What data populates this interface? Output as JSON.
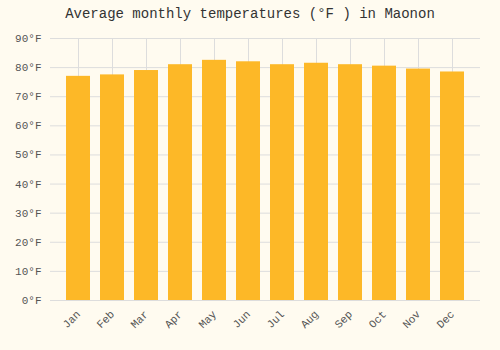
{
  "chart_data": {
    "type": "bar",
    "title": "Average monthly temperatures (°F ) in Maonon",
    "categories": [
      "Jan",
      "Feb",
      "Mar",
      "Apr",
      "May",
      "Jun",
      "Jul",
      "Aug",
      "Sep",
      "Oct",
      "Nov",
      "Dec"
    ],
    "values": [
      77.0,
      77.5,
      79.0,
      81.0,
      82.5,
      82.0,
      81.0,
      81.5,
      81.0,
      80.5,
      79.5,
      78.5
    ],
    "color": "#FDB827",
    "ylim": [
      0,
      90
    ],
    "yticks": [
      {
        "value": 0,
        "label": "0°F"
      },
      {
        "value": 10,
        "label": "10°F"
      },
      {
        "value": 20,
        "label": "20°F"
      },
      {
        "value": 30,
        "label": "30°F"
      },
      {
        "value": 40,
        "label": "40°F"
      },
      {
        "value": 50,
        "label": "50°F"
      },
      {
        "value": 60,
        "label": "60°F"
      },
      {
        "value": 70,
        "label": "70°F"
      },
      {
        "value": 80,
        "label": "80°F"
      },
      {
        "value": 90,
        "label": "90°F"
      }
    ],
    "grid": true
  }
}
